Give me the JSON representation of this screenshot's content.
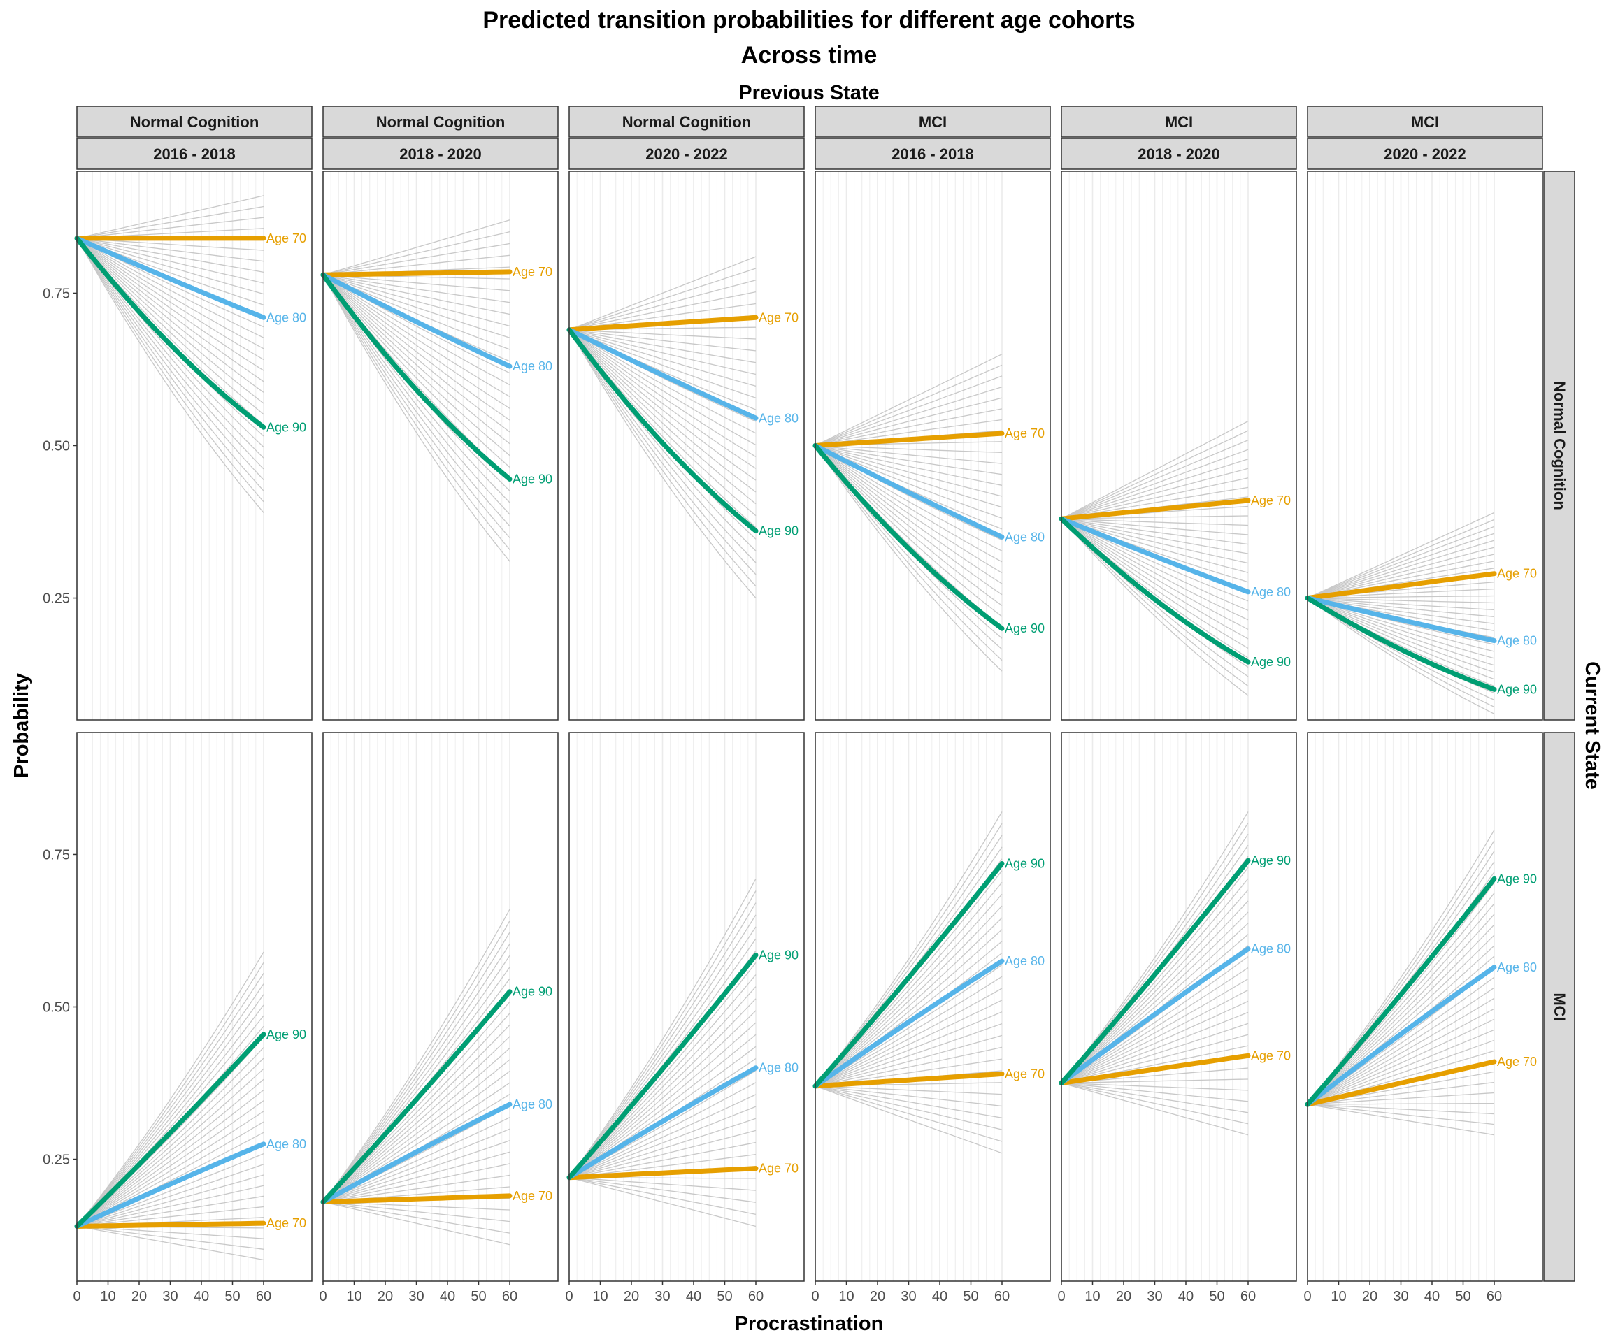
{
  "title": "Predicted transition probabilities for different age cohorts",
  "subtitle": "Across time",
  "facet_col_title": "Previous State",
  "facet_row_title": "Current State",
  "xlabel": "Procrastination",
  "ylabel": "Probability",
  "colors": {
    "Age 70": "#E69F00",
    "Age 80": "#56B4E9",
    "Age 90": "#009E73",
    "background_lines": "#c8c8c8",
    "grid": "#ebebeb",
    "strip_fill": "#d9d9d9"
  },
  "chart_data": {
    "type": "line",
    "x_range": [
      0,
      60
    ],
    "x_ticks": [
      0,
      10,
      20,
      30,
      40,
      50,
      60
    ],
    "y_range": [
      0.05,
      0.95
    ],
    "y_ticks": [
      0.25,
      0.5,
      0.75
    ],
    "y_tick_labels": [
      "0.25",
      "0.50",
      "0.75"
    ],
    "grid": "vertical",
    "background_cohort_lines": 30,
    "panel_columns": [
      {
        "previous_state": "Normal Cognition",
        "period": "2016 - 2018"
      },
      {
        "previous_state": "Normal Cognition",
        "period": "2018 - 2020"
      },
      {
        "previous_state": "Normal Cognition",
        "period": "2020 - 2022"
      },
      {
        "previous_state": "MCI",
        "period": "2016 - 2018"
      },
      {
        "previous_state": "MCI",
        "period": "2018 - 2020"
      },
      {
        "previous_state": "MCI",
        "period": "2020 - 2022"
      }
    ],
    "panel_rows": [
      "Normal Cognition",
      "MCI"
    ],
    "panels": [
      [
        {
          "start": 0.84,
          "Age 70": 0.84,
          "Age 80": 0.71,
          "Age 90": 0.53,
          "fan_min": 0.39,
          "fan_max": 0.91
        },
        {
          "start": 0.78,
          "Age 70": 0.785,
          "Age 80": 0.63,
          "Age 90": 0.445,
          "fan_min": 0.31,
          "fan_max": 0.87
        },
        {
          "start": 0.69,
          "Age 70": 0.71,
          "Age 80": 0.545,
          "Age 90": 0.36,
          "fan_min": 0.25,
          "fan_max": 0.81
        },
        {
          "start": 0.5,
          "Age 70": 0.52,
          "Age 80": 0.35,
          "Age 90": 0.2,
          "fan_min": 0.13,
          "fan_max": 0.65
        },
        {
          "start": 0.38,
          "Age 70": 0.41,
          "Age 80": 0.26,
          "Age 90": 0.145,
          "fan_min": 0.09,
          "fan_max": 0.54
        },
        {
          "start": 0.25,
          "Age 70": 0.29,
          "Age 80": 0.18,
          "Age 90": 0.1,
          "fan_min": 0.06,
          "fan_max": 0.39
        }
      ],
      [
        {
          "start": 0.14,
          "Age 70": 0.145,
          "Age 80": 0.275,
          "Age 90": 0.455,
          "fan_min": 0.085,
          "fan_max": 0.59
        },
        {
          "start": 0.18,
          "Age 70": 0.19,
          "Age 80": 0.34,
          "Age 90": 0.525,
          "fan_min": 0.11,
          "fan_max": 0.66
        },
        {
          "start": 0.22,
          "Age 70": 0.235,
          "Age 80": 0.4,
          "Age 90": 0.585,
          "fan_min": 0.14,
          "fan_max": 0.71
        },
        {
          "start": 0.37,
          "Age 70": 0.39,
          "Age 80": 0.575,
          "Age 90": 0.735,
          "fan_min": 0.26,
          "fan_max": 0.82
        },
        {
          "start": 0.375,
          "Age 70": 0.42,
          "Age 80": 0.595,
          "Age 90": 0.74,
          "fan_min": 0.29,
          "fan_max": 0.82
        },
        {
          "start": 0.34,
          "Age 70": 0.41,
          "Age 80": 0.565,
          "Age 90": 0.71,
          "fan_min": 0.29,
          "fan_max": 0.79
        }
      ]
    ],
    "series_names": [
      "Age 70",
      "Age 80",
      "Age 90"
    ]
  }
}
